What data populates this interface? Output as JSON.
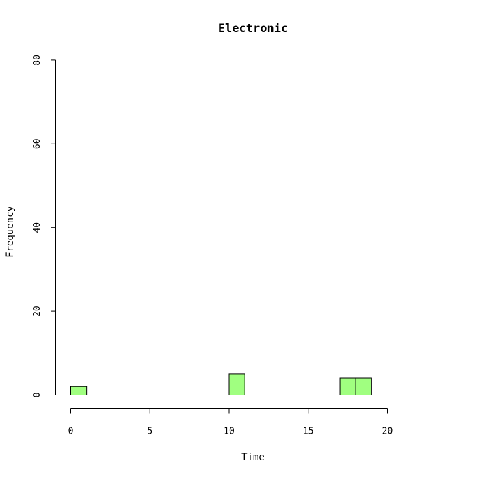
{
  "chart_data": {
    "type": "bar",
    "title": "Electronic",
    "xlabel": "Time",
    "ylabel": "Frequency",
    "xlim": [
      0,
      24
    ],
    "ylim": [
      0,
      80
    ],
    "x_ticks": [
      0,
      5,
      10,
      15,
      20
    ],
    "y_ticks": [
      0,
      20,
      40,
      60,
      80
    ],
    "bins": [
      {
        "start": 0,
        "end": 1,
        "value": 2
      },
      {
        "start": 1,
        "end": 2,
        "value": 0
      },
      {
        "start": 2,
        "end": 3,
        "value": 0
      },
      {
        "start": 3,
        "end": 4,
        "value": 0
      },
      {
        "start": 4,
        "end": 5,
        "value": 0
      },
      {
        "start": 5,
        "end": 6,
        "value": 0
      },
      {
        "start": 6,
        "end": 7,
        "value": 0
      },
      {
        "start": 7,
        "end": 8,
        "value": 0
      },
      {
        "start": 8,
        "end": 9,
        "value": 0
      },
      {
        "start": 9,
        "end": 10,
        "value": 0
      },
      {
        "start": 10,
        "end": 11,
        "value": 5
      },
      {
        "start": 11,
        "end": 12,
        "value": 0
      },
      {
        "start": 12,
        "end": 13,
        "value": 0
      },
      {
        "start": 13,
        "end": 14,
        "value": 0
      },
      {
        "start": 14,
        "end": 15,
        "value": 0
      },
      {
        "start": 15,
        "end": 16,
        "value": 0
      },
      {
        "start": 16,
        "end": 17,
        "value": 0
      },
      {
        "start": 17,
        "end": 18,
        "value": 4
      },
      {
        "start": 18,
        "end": 19,
        "value": 4
      },
      {
        "start": 19,
        "end": 20,
        "value": 0
      },
      {
        "start": 20,
        "end": 21,
        "value": 0
      },
      {
        "start": 21,
        "end": 22,
        "value": 0
      },
      {
        "start": 22,
        "end": 23,
        "value": 0
      },
      {
        "start": 23,
        "end": 24,
        "value": 0
      }
    ],
    "bar_color": "#a0ff80",
    "grid": false,
    "legend": "none"
  }
}
